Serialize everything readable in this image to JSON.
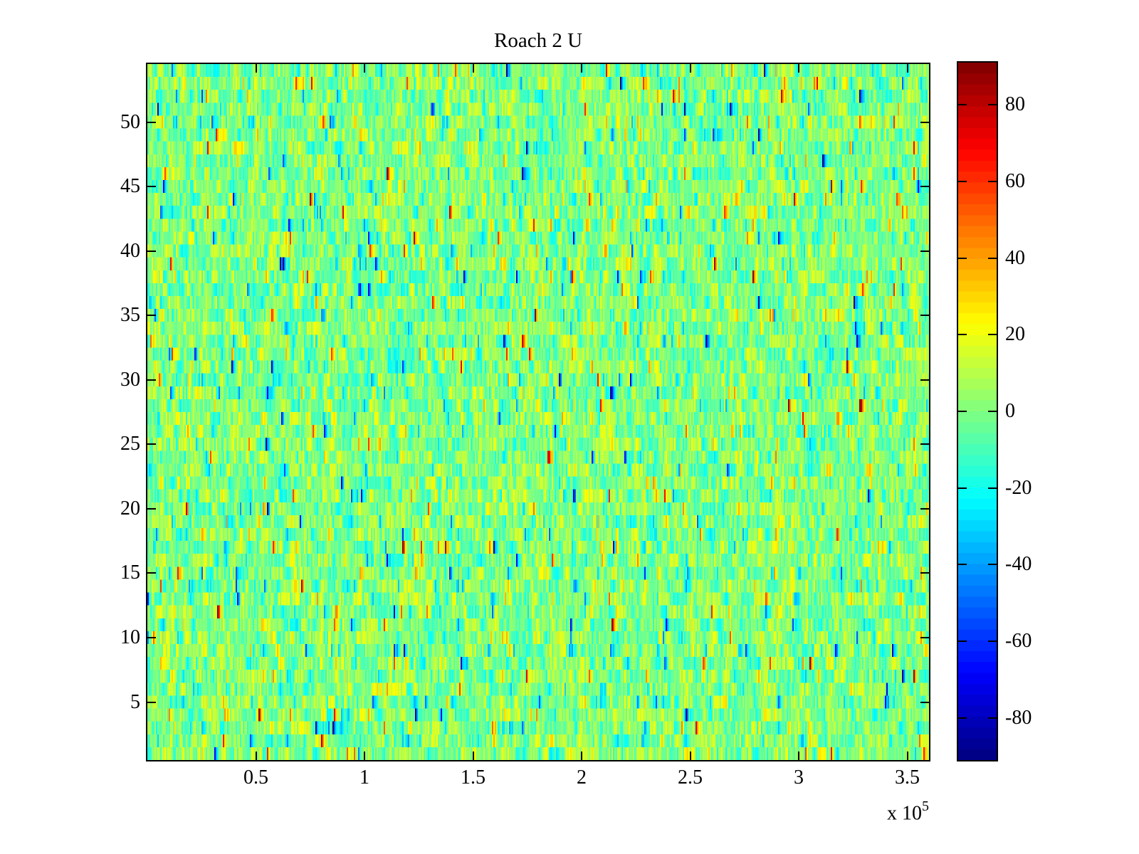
{
  "figure": {
    "background_color": "#ffffff"
  },
  "chart_data": {
    "type": "heatmap",
    "title": "Roach 2 U",
    "x_axis": {
      "range": [
        0,
        360000
      ],
      "tick_values": [
        50000,
        100000,
        150000,
        200000,
        250000,
        300000,
        350000
      ],
      "tick_labels": [
        "0.5",
        "1",
        "1.5",
        "2",
        "2.5",
        "3",
        "3.5"
      ],
      "exponent_prefix": "x 10",
      "exponent": "5"
    },
    "y_axis": {
      "range": [
        0.5,
        54.5
      ],
      "tick_values": [
        5,
        10,
        15,
        20,
        25,
        30,
        35,
        40,
        45,
        50
      ],
      "tick_labels": [
        "5",
        "10",
        "15",
        "20",
        "25",
        "30",
        "35",
        "40",
        "45",
        "50"
      ]
    },
    "grid": false,
    "colormap": {
      "name": "jet",
      "levels": 64,
      "clim": [
        -91,
        91
      ],
      "zero_color": "#80ff80",
      "max_color": "#880000",
      "min_color": "#000088"
    },
    "colorbar": {
      "position": "right",
      "tick_values": [
        80,
        60,
        40,
        20,
        0,
        -20,
        -40,
        -60,
        -80
      ],
      "tick_labels": [
        "80",
        "60",
        "40",
        "20",
        "0",
        "-20",
        "-40",
        "-60",
        "-80"
      ]
    },
    "data_model": {
      "description": "zero-mean random noise heatmap of 54 rows; bulk values within about +/-25 (greens, cyans, yellows), sparse 1-2px outlier streaks reaching +/-90 (orange, red, blue)",
      "rows": 54,
      "cols": 549,
      "ar_coeff": 0.45,
      "base_std": 10,
      "outlier_prob": 0.04,
      "outlier_std": 38,
      "seed": 1234567
    }
  }
}
